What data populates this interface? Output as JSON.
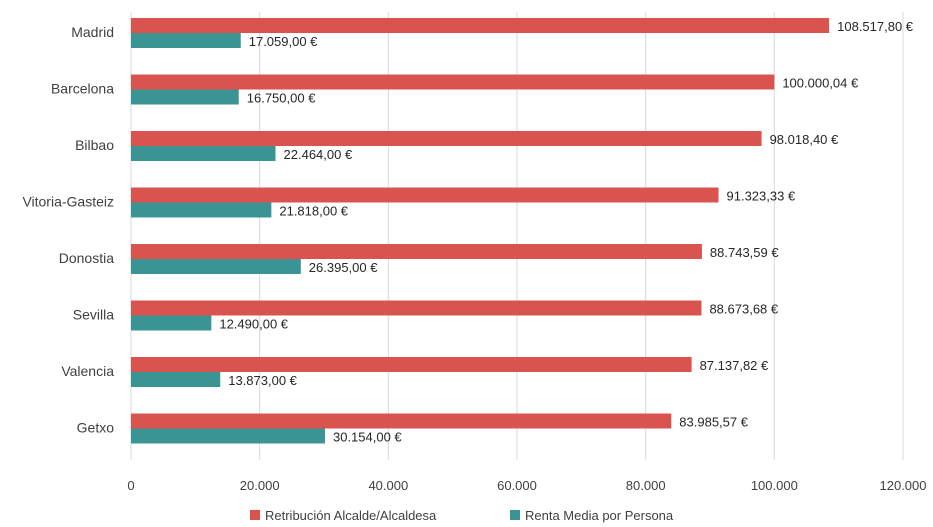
{
  "chart_data": {
    "type": "bar",
    "orientation": "horizontal",
    "categories": [
      "Madrid",
      "Barcelona",
      "Bilbao",
      "Vitoria-Gasteiz",
      "Donostia",
      "Sevilla",
      "Valencia",
      "Getxo"
    ],
    "series": [
      {
        "name": "Retribución Alcalde/Alcaldesa",
        "color": "#d9534f",
        "values": [
          108517.8,
          100000.04,
          98018.4,
          91323.33,
          88743.59,
          88673.68,
          87137.82,
          83985.57
        ],
        "labels": [
          "108.517,80 €",
          "100.000,04 €",
          "98.018,40 €",
          "91.323,33 €",
          "88.743,59 €",
          "88.673,68 €",
          "87.137,82 €",
          "83.985,57 €"
        ]
      },
      {
        "name": "Renta Media por Persona",
        "color": "#3a9494",
        "values": [
          17059,
          16750,
          22464,
          21818,
          26395,
          12490,
          13873,
          30154
        ],
        "labels": [
          "17.059,00 €",
          "16.750,00 €",
          "22.464,00 €",
          "21.818,00 €",
          "26.395,00 €",
          "12.490,00 €",
          "13.873,00 €",
          "30.154,00 €"
        ]
      }
    ],
    "xlim": [
      0,
      120000
    ],
    "xticks": [
      0,
      20000,
      40000,
      60000,
      80000,
      100000,
      120000
    ],
    "xtick_labels": [
      "0",
      "20.000",
      "40.000",
      "60.000",
      "80.000",
      "100.000",
      "120.000"
    ],
    "grid": true,
    "legend_position": "bottom"
  }
}
